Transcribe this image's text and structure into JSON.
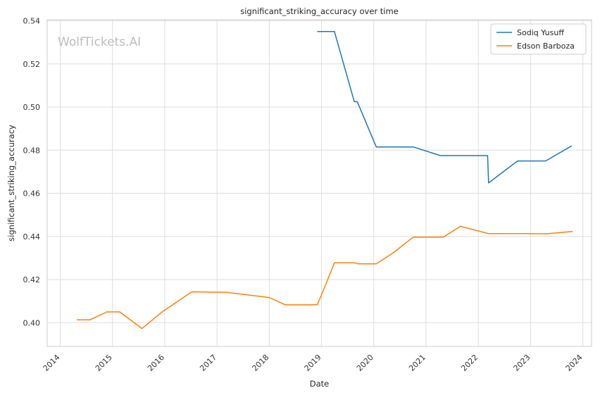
{
  "chart_data": {
    "type": "line",
    "title": "significant_striking_accuracy over time",
    "xlabel": "Date",
    "ylabel": "significant_striking_accuracy",
    "watermark": "WolfTickets.AI",
    "xlim": [
      "2013-10-01",
      "2024-03-01"
    ],
    "ylim": [
      0.389,
      0.5405
    ],
    "x_ticks": [
      "2014",
      "2015",
      "2016",
      "2017",
      "2018",
      "2019",
      "2020",
      "2021",
      "2022",
      "2023",
      "2024"
    ],
    "y_ticks": [
      "0.40",
      "0.42",
      "0.44",
      "0.46",
      "0.48",
      "0.50",
      "0.52",
      "0.54"
    ],
    "grid": true,
    "legend_position": "top-right",
    "series": [
      {
        "name": "Sodiq Yusuff",
        "color": "#1f77b4",
        "points": [
          [
            "2018-12-01",
            0.535
          ],
          [
            "2019-03-30",
            0.535
          ],
          [
            "2019-08-17",
            0.5025
          ],
          [
            "2019-09-07",
            0.5025
          ],
          [
            "2020-01-18",
            0.4815
          ],
          [
            "2020-10-03",
            0.4815
          ],
          [
            "2021-04-10",
            0.4775
          ],
          [
            "2022-03-05",
            0.4775
          ],
          [
            "2022-03-12",
            0.4648
          ],
          [
            "2022-10-01",
            0.475
          ],
          [
            "2023-04-15",
            0.475
          ],
          [
            "2023-10-14",
            0.482
          ]
        ]
      },
      {
        "name": "Edson Barboza",
        "color": "#ff7f0e",
        "points": [
          [
            "2014-04-26",
            0.4013
          ],
          [
            "2014-07-26",
            0.4013
          ],
          [
            "2014-11-22",
            0.405
          ],
          [
            "2015-02-21",
            0.405
          ],
          [
            "2015-07-25",
            0.3973
          ],
          [
            "2015-12-19",
            0.4053
          ],
          [
            "2016-07-07",
            0.4143
          ],
          [
            "2017-03-04",
            0.4141
          ],
          [
            "2017-12-30",
            0.4117
          ],
          [
            "2018-04-21",
            0.4083
          ],
          [
            "2018-12-01",
            0.4083
          ],
          [
            "2018-12-29",
            0.4125
          ],
          [
            "2019-03-30",
            0.4278
          ],
          [
            "2019-08-17",
            0.4278
          ],
          [
            "2019-09-14",
            0.4273
          ],
          [
            "2020-01-18",
            0.4273
          ],
          [
            "2020-05-13",
            0.4323
          ],
          [
            "2020-10-03",
            0.4397
          ],
          [
            "2021-05-01",
            0.4397
          ],
          [
            "2021-08-28",
            0.4447
          ],
          [
            "2022-03-12",
            0.4413
          ],
          [
            "2022-11-19",
            0.4413
          ],
          [
            "2023-04-15",
            0.4412
          ],
          [
            "2023-10-21",
            0.4423
          ]
        ]
      }
    ]
  }
}
